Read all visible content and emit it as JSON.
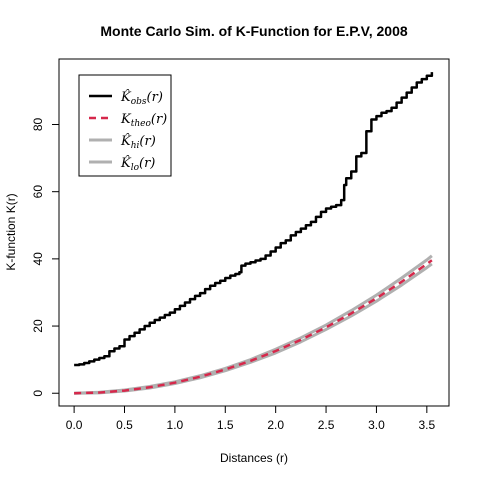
{
  "chart_data": {
    "type": "line",
    "title": "Monte Carlo Sim. of K-Function for E.P.V, 2008",
    "xlabel": "Distances (r)",
    "ylabel": "K-function K(r)",
    "xlim": [
      -0.15,
      3.72
    ],
    "ylim": [
      -3.8,
      99.5
    ],
    "xticks": [
      0.0,
      0.5,
      1.0,
      1.5,
      2.0,
      2.5,
      3.0,
      3.5
    ],
    "xtick_labels": [
      "0.0",
      "0.5",
      "1.0",
      "1.5",
      "2.0",
      "2.5",
      "3.0",
      "3.5"
    ],
    "yticks": [
      0,
      20,
      40,
      60,
      80
    ],
    "ytick_labels": [
      "0",
      "20",
      "40",
      "60",
      "80"
    ],
    "grid": false,
    "legend_position": "top-left",
    "series": [
      {
        "name": "K̂obs(r)",
        "legend_main": "K̂",
        "legend_sub": "obs",
        "color": "#000000",
        "style": "solid",
        "step": true,
        "x": [
          0.0,
          0.05,
          0.1,
          0.15,
          0.2,
          0.25,
          0.3,
          0.35,
          0.4,
          0.45,
          0.5,
          0.55,
          0.6,
          0.65,
          0.7,
          0.75,
          0.8,
          0.85,
          0.9,
          0.95,
          1.0,
          1.05,
          1.1,
          1.15,
          1.2,
          1.25,
          1.3,
          1.35,
          1.4,
          1.45,
          1.5,
          1.55,
          1.6,
          1.64,
          1.66,
          1.7,
          1.75,
          1.8,
          1.85,
          1.9,
          1.95,
          2.0,
          2.05,
          2.1,
          2.15,
          2.2,
          2.25,
          2.3,
          2.35,
          2.4,
          2.45,
          2.5,
          2.55,
          2.6,
          2.65,
          2.68,
          2.7,
          2.75,
          2.8,
          2.85,
          2.9,
          2.95,
          3.0,
          3.05,
          3.1,
          3.15,
          3.2,
          3.25,
          3.3,
          3.35,
          3.4,
          3.45,
          3.5,
          3.55
        ],
        "values": [
          8.4,
          8.6,
          9.0,
          9.5,
          10.0,
          10.5,
          11.0,
          12.5,
          13.3,
          14.0,
          16.0,
          17.0,
          18.0,
          19.0,
          20.0,
          21.0,
          21.8,
          22.5,
          23.3,
          24.0,
          25.0,
          26.0,
          27.0,
          28.0,
          29.0,
          29.8,
          31.0,
          32.0,
          32.8,
          33.5,
          34.3,
          35.0,
          35.5,
          36.0,
          38.0,
          38.6,
          39.0,
          39.5,
          40.0,
          41.0,
          42.2,
          43.4,
          44.7,
          45.5,
          47.0,
          48.0,
          49.0,
          50.0,
          51.0,
          52.5,
          54.0,
          55.0,
          55.5,
          56.0,
          57.5,
          62.0,
          64.0,
          66.0,
          70.5,
          71.5,
          78.0,
          81.5,
          82.5,
          83.5,
          84.0,
          85.0,
          86.5,
          88.0,
          89.5,
          91.0,
          92.5,
          93.5,
          94.5,
          95.6
        ]
      },
      {
        "name": "Ktheo(r)",
        "legend_main": "K",
        "legend_sub": "theo",
        "color": "#d6284b",
        "style": "dashed",
        "x": [
          0.0,
          0.25,
          0.5,
          0.75,
          1.0,
          1.25,
          1.5,
          1.75,
          2.0,
          2.25,
          2.5,
          2.75,
          3.0,
          3.25,
          3.5,
          3.55
        ],
        "values": [
          0.0,
          0.2,
          0.79,
          1.77,
          3.14,
          4.91,
          7.07,
          9.62,
          12.57,
          15.9,
          19.63,
          23.76,
          28.27,
          33.18,
          38.48,
          39.59
        ]
      },
      {
        "name": "K̂hi(r)",
        "legend_main": "K̂",
        "legend_sub": "hi",
        "color": "#b0b0b0",
        "style": "solid",
        "x": [
          0.0,
          0.25,
          0.5,
          0.75,
          1.0,
          1.25,
          1.5,
          1.75,
          2.0,
          2.25,
          2.5,
          2.75,
          3.0,
          3.25,
          3.5,
          3.55
        ],
        "values": [
          0.0,
          0.3,
          0.95,
          2.0,
          3.4,
          5.2,
          7.4,
          10.0,
          13.1,
          16.5,
          20.3,
          24.6,
          29.2,
          34.3,
          39.7,
          40.9
        ]
      },
      {
        "name": "K̂lo(r)",
        "legend_main": "K̂",
        "legend_sub": "lo",
        "color": "#b0b0b0",
        "style": "solid",
        "x": [
          0.0,
          0.25,
          0.5,
          0.75,
          1.0,
          1.25,
          1.5,
          1.75,
          2.0,
          2.25,
          2.5,
          2.75,
          3.0,
          3.25,
          3.5,
          3.55
        ],
        "values": [
          0.0,
          0.1,
          0.65,
          1.55,
          2.9,
          4.6,
          6.7,
          9.2,
          12.0,
          15.3,
          19.0,
          23.0,
          27.4,
          32.2,
          37.4,
          38.5
        ]
      }
    ]
  }
}
